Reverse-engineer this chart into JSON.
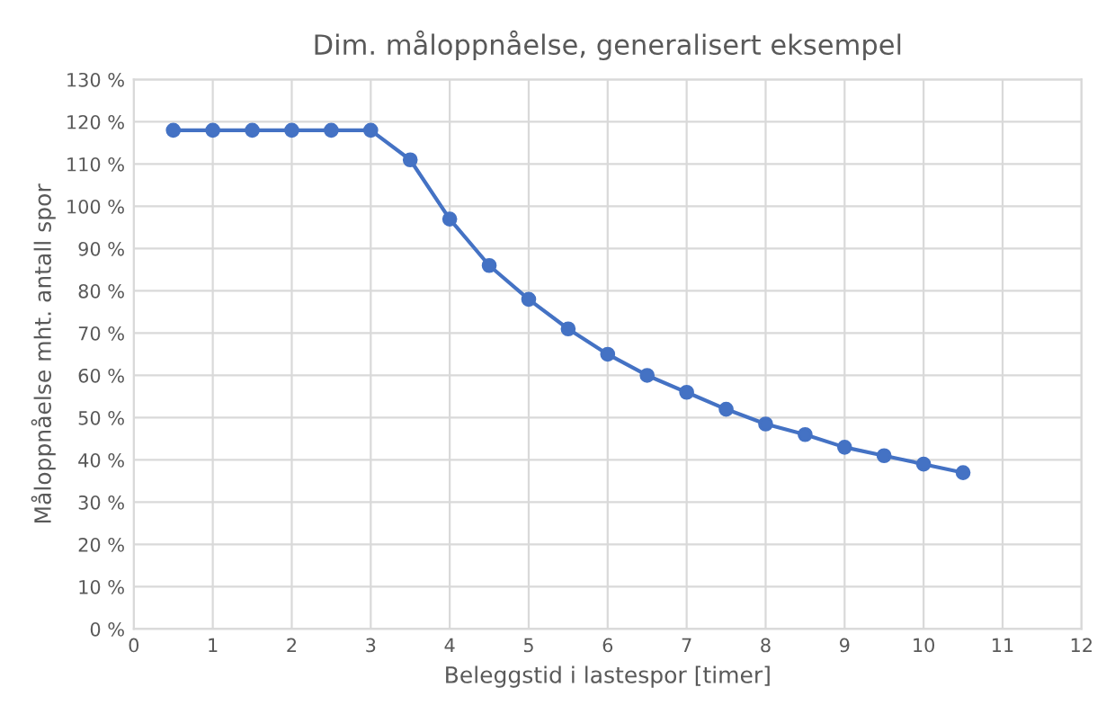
{
  "chart_data": {
    "type": "line",
    "title": "Dim. måloppnåelse, generalisert eksempel",
    "xlabel": "Beleggstid i lastespor [timer]",
    "ylabel": "Måloppnåelse mht. antall spor",
    "x": [
      0.5,
      1,
      1.5,
      2,
      2.5,
      3,
      3.5,
      4,
      4.5,
      5,
      5.5,
      6,
      6.5,
      7,
      7.5,
      8,
      8.5,
      9,
      9.5,
      10,
      10.5
    ],
    "series": [
      {
        "color": "#4472c4",
        "values": [
          118,
          118,
          118,
          118,
          118,
          118,
          111,
          97,
          86,
          78,
          71,
          65,
          60,
          56,
          52,
          48.5,
          46,
          43,
          41,
          39,
          37
        ]
      }
    ],
    "xlim": [
      0,
      12
    ],
    "xticks": [
      0,
      1,
      2,
      3,
      4,
      5,
      6,
      7,
      8,
      9,
      10,
      11,
      12
    ],
    "ylim": [
      0,
      130
    ],
    "yticks": [
      {
        "value": 0,
        "label": "0 %"
      },
      {
        "value": 10,
        "label": "10 %"
      },
      {
        "value": 20,
        "label": "20 %"
      },
      {
        "value": 30,
        "label": "30 %"
      },
      {
        "value": 40,
        "label": "40 %"
      },
      {
        "value": 50,
        "label": "50 %"
      },
      {
        "value": 60,
        "label": "60 %"
      },
      {
        "value": 70,
        "label": "70 %"
      },
      {
        "value": 80,
        "label": "80 %"
      },
      {
        "value": 90,
        "label": "90 %"
      },
      {
        "value": 100,
        "label": "100 %"
      },
      {
        "value": 110,
        "label": "110 %"
      },
      {
        "value": 120,
        "label": "120 %"
      },
      {
        "value": 130,
        "label": "130 %"
      }
    ],
    "grid": true,
    "marker": "circle",
    "line_style": "solid"
  }
}
